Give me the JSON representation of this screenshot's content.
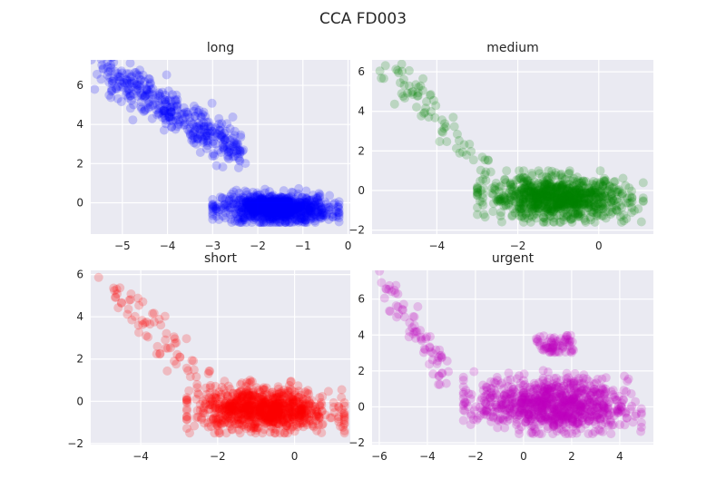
{
  "figure": {
    "title": "CCA FD003"
  },
  "colors": {
    "panel_bg": "#eaeaf2",
    "grid": "#ffffff",
    "text": "#262626"
  },
  "chart_data": [
    {
      "type": "scatter",
      "title": "long",
      "color": "#0000ff",
      "alpha": 0.2,
      "xlim": [
        -5.7,
        0.05
      ],
      "ylim": [
        -1.6,
        7.3
      ],
      "xticks": [
        -5,
        -4,
        -3,
        -2,
        -1,
        0
      ],
      "yticks": [
        0,
        2,
        4,
        6
      ],
      "grid": true,
      "clusters": [
        {
          "x": [
            -5.4,
            -2.4
          ],
          "y": [
            2.5,
            6.9
          ],
          "trend": "decreasing",
          "density": "medium"
        },
        {
          "x": [
            -3.0,
            -0.2
          ],
          "y": [
            -1.0,
            0.8
          ],
          "center": [
            -1.6,
            -0.3
          ],
          "density": "high"
        }
      ]
    },
    {
      "type": "scatter",
      "title": "medium",
      "color": "#008000",
      "alpha": 0.2,
      "xlim": [
        -5.6,
        1.35
      ],
      "ylim": [
        -2.2,
        6.6
      ],
      "xticks": [
        -4,
        -2,
        0
      ],
      "yticks": [
        -2,
        0,
        2,
        4,
        6
      ],
      "grid": true,
      "clusters": [
        {
          "x": [
            -5.3,
            -2.6
          ],
          "y": [
            1.0,
            6.2
          ],
          "trend": "decreasing",
          "density": "low"
        },
        {
          "x": [
            -3.0,
            1.1
          ],
          "y": [
            -1.6,
            1.0
          ],
          "center": [
            -1.0,
            -0.4
          ],
          "density": "high"
        }
      ]
    },
    {
      "type": "scatter",
      "title": "short",
      "color": "#ff0000",
      "alpha": 0.2,
      "xlim": [
        -5.3,
        1.45
      ],
      "ylim": [
        -2.05,
        6.2
      ],
      "xticks": [
        -4,
        -2,
        0
      ],
      "yticks": [
        -2,
        0,
        2,
        4,
        6
      ],
      "grid": true,
      "clusters": [
        {
          "x": [
            -5.0,
            -2.3
          ],
          "y": [
            1.0,
            5.8
          ],
          "trend": "decreasing",
          "density": "low"
        },
        {
          "x": [
            -2.8,
            1.3
          ],
          "y": [
            -1.5,
            1.0
          ],
          "center": [
            -0.8,
            -0.4
          ],
          "density": "high"
        }
      ]
    },
    {
      "type": "scatter",
      "title": "urgent",
      "color": "#bf00bf",
      "alpha": 0.2,
      "xlim": [
        -6.3,
        5.4
      ],
      "ylim": [
        -2.1,
        7.6
      ],
      "xticks": [
        -6,
        -4,
        -2,
        0,
        2,
        4
      ],
      "yticks": [
        -2,
        0,
        2,
        4,
        6
      ],
      "grid": true,
      "clusters": [
        {
          "x": [
            -6.0,
            -3.2
          ],
          "y": [
            1.5,
            7.2
          ],
          "trend": "decreasing",
          "density": "low"
        },
        {
          "x": [
            -2.5,
            4.9
          ],
          "y": [
            -1.5,
            2.2
          ],
          "center": [
            1.2,
            0.1
          ],
          "density": "high"
        },
        {
          "x": [
            0.5,
            2.1
          ],
          "y": [
            3.0,
            4.0
          ],
          "density": "low"
        }
      ]
    }
  ]
}
